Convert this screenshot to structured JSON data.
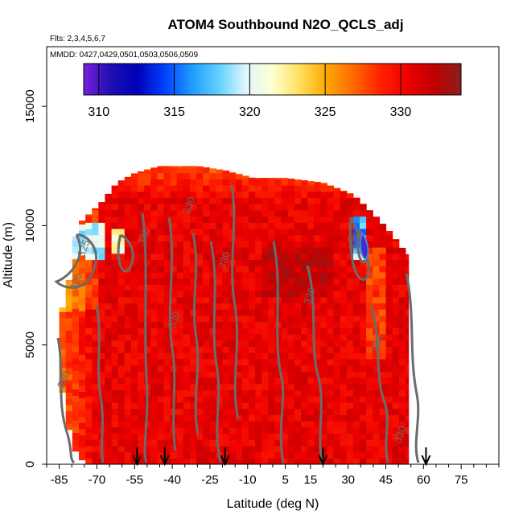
{
  "chart_data": {
    "type": "heatmap",
    "title": "ATOM4 Southbound N2O_QCLS_adj",
    "flights_label": "Flts: 2,3,4,5,6,7",
    "dates_label": "MMDD: 0427,0429,0501,0503,0506,0509",
    "xlabel": "Latitude (deg N)",
    "ylabel": "Altitude (m)",
    "xlim": [
      -90,
      90
    ],
    "ylim": [
      0,
      17500
    ],
    "x_ticks": [
      -85,
      -70,
      -55,
      -40,
      -25,
      -10,
      5,
      15,
      30,
      45,
      60,
      75
    ],
    "x_minor_step": 5,
    "y_ticks": [
      0,
      5000,
      10000,
      15000
    ],
    "colorbar": {
      "min": 309,
      "max": 334,
      "ticks": [
        310,
        315,
        320,
        325,
        330
      ],
      "colors": [
        "#7a1fe0",
        "#1c10b0",
        "#0000b8",
        "#0040ff",
        "#1e9bff",
        "#5fd0ff",
        "#dff5ff",
        "#ffffd2",
        "#ffe060",
        "#ffa800",
        "#ff6a00",
        "#ff2200",
        "#ee0000",
        "#c00000",
        "#8b1e1e"
      ]
    },
    "profile_markers_lat": [
      -54,
      -43,
      -19,
      20,
      61
    ],
    "contour_levels": [
      325,
      330,
      335
    ],
    "contour_labels": [
      {
        "text": "330",
        "lat": -18,
        "alt": 8500
      },
      {
        "text": "330",
        "lat": -38,
        "alt": 6000
      },
      {
        "text": "330",
        "lat": -50,
        "alt": 9500
      },
      {
        "text": "330",
        "lat": -32,
        "alt": 10800
      },
      {
        "text": "330",
        "lat": 16,
        "alt": 7000
      },
      {
        "text": "330",
        "lat": 43,
        "alt": 5000
      },
      {
        "text": "330",
        "lat": 52,
        "alt": 1200
      },
      {
        "text": "330",
        "lat": -82,
        "alt": 3500
      },
      {
        "text": "325",
        "lat": -77,
        "alt": 7600
      },
      {
        "text": "325",
        "lat": -74,
        "alt": 9000
      },
      {
        "text": "325",
        "lat": 34,
        "alt": 9300
      }
    ],
    "data_extent": {
      "lat_min": -85,
      "lat_max": 54,
      "top_altitude": [
        {
          "lat": -85,
          "alt": 6000
        },
        {
          "lat": -80,
          "alt": 8200
        },
        {
          "lat": -78,
          "alt": 10000
        },
        {
          "lat": -74,
          "alt": 10400
        },
        {
          "lat": -68,
          "alt": 11000
        },
        {
          "lat": -62,
          "alt": 11800
        },
        {
          "lat": -55,
          "alt": 12200
        },
        {
          "lat": -45,
          "alt": 12500
        },
        {
          "lat": -30,
          "alt": 12500
        },
        {
          "lat": -18,
          "alt": 12300
        },
        {
          "lat": -8,
          "alt": 12000
        },
        {
          "lat": 5,
          "alt": 12000
        },
        {
          "lat": 20,
          "alt": 11800
        },
        {
          "lat": 32,
          "alt": 11300
        },
        {
          "lat": 40,
          "alt": 10500
        },
        {
          "lat": 47,
          "alt": 9700
        },
        {
          "lat": 52,
          "alt": 9000
        },
        {
          "lat": 54,
          "alt": 8800
        }
      ],
      "bottom_altitude": [
        {
          "lat": -85,
          "alt": 3800
        },
        {
          "lat": -82,
          "alt": 2000
        },
        {
          "lat": -80,
          "alt": 800
        },
        {
          "lat": -77,
          "alt": 300
        },
        {
          "lat": -74,
          "alt": 0
        },
        {
          "lat": 54,
          "alt": 0
        }
      ]
    }
  }
}
